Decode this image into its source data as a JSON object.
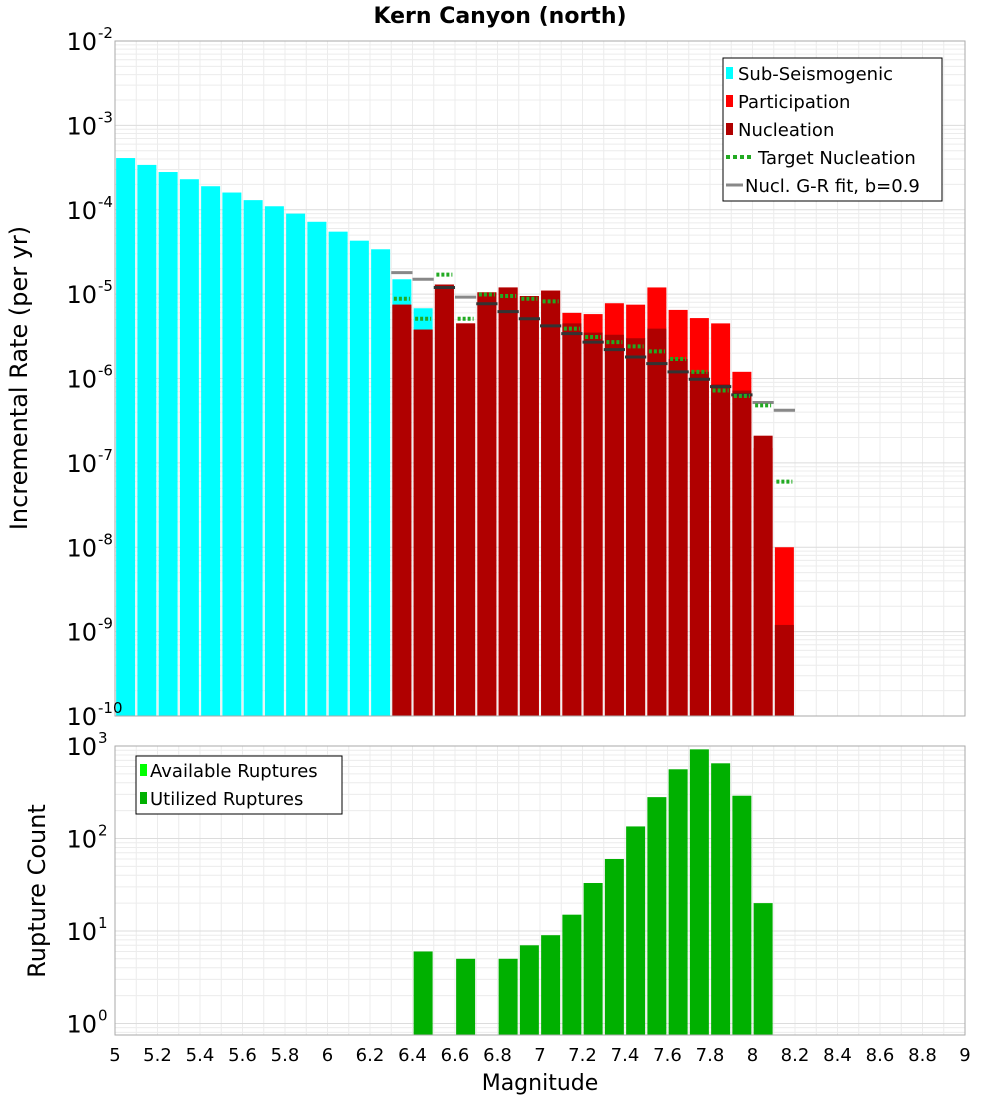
{
  "title": "Kern Canyon (north)",
  "colors": {
    "sub_seismogenic": "#00ffff",
    "participation": "#ff0000",
    "nucleation": "#b00000",
    "target_nucleation": "#22aa22",
    "gr_fit": "#888888",
    "available": "#00ff00",
    "utilized": "#00b000"
  },
  "chart_data": [
    {
      "type": "bar",
      "yscale": "log",
      "ylabel": "Incremental Rate (per yr)",
      "xlim": [
        5,
        9
      ],
      "ylim": [
        1e-10,
        0.01
      ],
      "y_tick_exponents": [
        "-10",
        "-9",
        "-8",
        "-7",
        "-6",
        "-5",
        "-4",
        "-3",
        "-2"
      ],
      "legend_position": "top-right",
      "legend": [
        "Sub-Seismogenic",
        "Participation",
        "Nucleation",
        "Target Nucleation",
        "Nucl. G-R fit, b=0.9"
      ],
      "series": [
        {
          "name": "Sub-Seismogenic",
          "x": [
            5.05,
            5.15,
            5.25,
            5.35,
            5.45,
            5.55,
            5.65,
            5.75,
            5.85,
            5.95,
            6.05,
            6.15,
            6.25,
            6.35,
            6.45
          ],
          "values": [
            0.00041,
            0.00034,
            0.00028,
            0.00023,
            0.00019,
            0.00016,
            0.00013,
            0.00011,
            9e-05,
            7.2e-05,
            5.5e-05,
            4.3e-05,
            3.4e-05,
            1.5e-05,
            6.8e-06
          ]
        },
        {
          "name": "Participation",
          "x": [
            6.35,
            6.45,
            6.55,
            6.65,
            6.75,
            6.85,
            6.95,
            7.05,
            7.15,
            7.25,
            7.35,
            7.45,
            7.55,
            7.65,
            7.75,
            7.85,
            7.95,
            8.05,
            8.15
          ],
          "values": [
            7.5e-06,
            3.8e-06,
            1.3e-05,
            4.5e-06,
            1.05e-05,
            1.2e-05,
            9.5e-06,
            1.1e-05,
            6e-06,
            5.8e-06,
            7.8e-06,
            7.5e-06,
            1.2e-05,
            6.5e-06,
            5.2e-06,
            4.5e-06,
            1.2e-06,
            1.5e-07,
            1e-08
          ]
        },
        {
          "name": "Nucleation",
          "x": [
            6.35,
            6.45,
            6.55,
            6.65,
            6.75,
            6.85,
            6.95,
            7.05,
            7.15,
            7.25,
            7.35,
            7.45,
            7.55,
            7.65,
            7.75,
            7.85,
            7.95,
            8.05,
            8.15
          ],
          "values": [
            7.5e-06,
            3.8e-06,
            1.3e-05,
            4.5e-06,
            1.05e-05,
            1.2e-05,
            9.5e-06,
            1.1e-05,
            4.5e-06,
            3.5e-06,
            3.3e-06,
            3e-06,
            3.9e-06,
            1.7e-06,
            1.2e-06,
            8.5e-07,
            7.2e-07,
            2.1e-07,
            1.2e-09
          ]
        },
        {
          "name": "Target Nucleation",
          "x": [
            6.35,
            6.45,
            6.55,
            6.65,
            6.75,
            6.85,
            6.95,
            7.05,
            7.15,
            7.25,
            7.35,
            7.45,
            7.55,
            7.65,
            7.75,
            7.85,
            7.95,
            8.05,
            8.15
          ],
          "values": [
            8.8e-06,
            5.1e-06,
            1.7e-05,
            5.1e-06,
            9.9e-06,
            9.5e-06,
            8.8e-06,
            8.2e-06,
            3.9e-06,
            3.1e-06,
            2.7e-06,
            2.4e-06,
            2.1e-06,
            1.7e-06,
            1.2e-06,
            7.2e-07,
            6.2e-07,
            4.8e-07,
            6e-08
          ]
        },
        {
          "name": "Nucl. G-R fit, b=0.9",
          "x": [
            6.35,
            6.45,
            6.55,
            6.65,
            6.75,
            6.85,
            6.95,
            7.05,
            7.15,
            7.25,
            7.35,
            7.45,
            7.55,
            7.65,
            7.75,
            7.85,
            7.95,
            8.05,
            8.15
          ],
          "values": [
            1.8e-05,
            1.5e-05,
            1.2e-05,
            9.2e-06,
            7.7e-06,
            6.2e-06,
            5.1e-06,
            4.2e-06,
            3.4e-06,
            2.7e-06,
            2.2e-06,
            1.8e-06,
            1.5e-06,
            1.2e-06,
            9.8e-07,
            8e-07,
            6.4e-07,
            5.2e-07,
            4.2e-07
          ]
        }
      ]
    },
    {
      "type": "bar",
      "yscale": "log",
      "ylabel": "Rupture Count",
      "xlabel": "Magnitude",
      "xlim": [
        5,
        9
      ],
      "ylim": [
        0.75,
        1000
      ],
      "y_tick_exponents": [
        "0",
        "1",
        "2",
        "3"
      ],
      "x_ticks": [
        "5",
        "5.2",
        "5.4",
        "5.6",
        "5.8",
        "6",
        "6.2",
        "6.4",
        "6.6",
        "6.8",
        "7",
        "7.2",
        "7.4",
        "7.6",
        "7.8",
        "8",
        "8.2",
        "8.4",
        "8.6",
        "8.8",
        "9"
      ],
      "legend_position": "top-left",
      "legend": [
        "Available Ruptures",
        "Utilized Ruptures"
      ],
      "series": [
        {
          "name": "Utilized Ruptures",
          "x": [
            6.45,
            6.65,
            6.85,
            6.95,
            7.05,
            7.15,
            7.25,
            7.35,
            7.45,
            7.55,
            7.65,
            7.75,
            7.85,
            7.95,
            8.05
          ],
          "values": [
            6,
            5,
            5,
            7,
            9,
            15,
            33,
            60,
            135,
            280,
            560,
            920,
            650,
            290,
            20
          ]
        }
      ]
    }
  ]
}
